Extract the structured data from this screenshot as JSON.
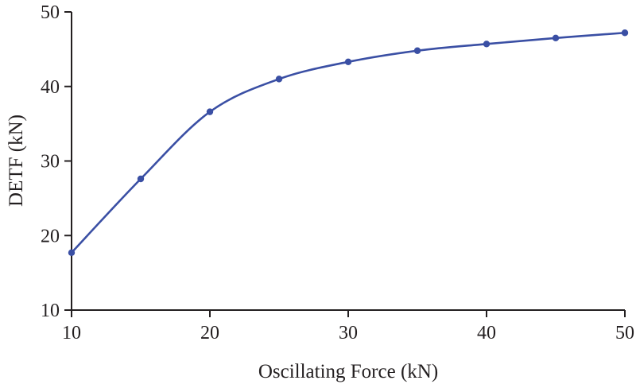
{
  "chart_data": {
    "type": "line",
    "title": "",
    "xlabel": "Oscillating Force (kN)",
    "ylabel": "DETF (kN)",
    "x": [
      10,
      15,
      20,
      25,
      30,
      35,
      40,
      45,
      50
    ],
    "series": [
      {
        "name": "DETF",
        "values": [
          17.7,
          27.6,
          36.6,
          41.0,
          43.3,
          44.8,
          45.7,
          46.5,
          47.2
        ]
      }
    ],
    "xlim": [
      10,
      50
    ],
    "ylim": [
      10,
      50
    ],
    "xticks": [
      10,
      20,
      30,
      40,
      50
    ],
    "yticks": [
      10,
      20,
      30,
      40,
      50
    ],
    "grid": false,
    "legend": "none",
    "line_color": "#3a4fa4",
    "marker": "circle",
    "marker_color": "#3a4fa4",
    "axis_color": "#231f20"
  }
}
